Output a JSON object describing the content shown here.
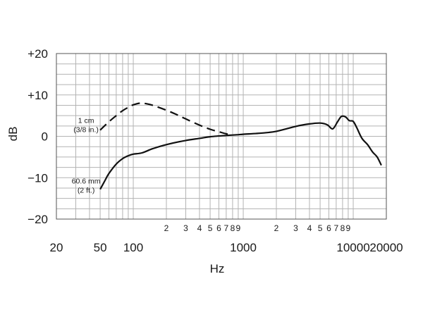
{
  "chart_data": {
    "type": "line",
    "xlabel": "Hz",
    "ylabel": "dB",
    "x_scale": "log",
    "xlim": [
      20,
      20000
    ],
    "ylim": [
      -20,
      20
    ],
    "grid": true,
    "y_ticks": [
      "+20",
      "+10",
      "0",
      "−10",
      "−20"
    ],
    "y_tick_values": [
      20,
      10,
      0,
      -10,
      -20
    ],
    "x_major_ticks": [
      "20",
      "50",
      "100",
      "1000",
      "10000",
      "20000"
    ],
    "x_major_tick_values": [
      20,
      50,
      100,
      1000,
      10000,
      20000
    ],
    "x_minor_ticks": [
      {
        "label": "2",
        "value": 200
      },
      {
        "label": "3",
        "value": 300
      },
      {
        "label": "4",
        "value": 400
      },
      {
        "label": "5",
        "value": 500
      },
      {
        "label": "6",
        "value": 600
      },
      {
        "label": "7",
        "value": 700
      },
      {
        "label": "8",
        "value": 800
      },
      {
        "label": "9",
        "value": 900
      },
      {
        "label": "2",
        "value": 2000
      },
      {
        "label": "3",
        "value": 3000
      },
      {
        "label": "4",
        "value": 4000
      },
      {
        "label": "5",
        "value": 5000
      },
      {
        "label": "6",
        "value": 6000
      },
      {
        "label": "7",
        "value": 7000
      },
      {
        "label": "8",
        "value": 8000
      },
      {
        "label": "9",
        "value": 9000
      }
    ],
    "series": [
      {
        "name": "1 cm (3/8 in.)",
        "name_line1": "1 cm",
        "name_line2": "(3/8 in.)",
        "style": "dashed",
        "color": "#111111",
        "x": [
          50,
          60,
          70,
          80,
          90,
          100,
          115,
          130,
          150,
          200,
          250,
          300,
          400,
          500,
          600,
          700,
          800
        ],
        "y": [
          1.5,
          3.5,
          5.0,
          6.2,
          7.0,
          7.6,
          8.0,
          7.9,
          7.5,
          6.3,
          5.2,
          4.2,
          2.7,
          1.7,
          1.1,
          0.6,
          0.3
        ]
      },
      {
        "name": "60.6 mm (2 ft.)",
        "name_line1": "60.6 mm",
        "name_line2": "(2 ft.)",
        "style": "solid",
        "color": "#111111",
        "x": [
          50,
          55,
          60,
          70,
          80,
          90,
          100,
          120,
          150,
          200,
          300,
          400,
          500,
          700,
          900,
          1000,
          1500,
          2000,
          3000,
          4000,
          5000,
          5800,
          6500,
          7200,
          7800,
          8500,
          9200,
          10000,
          10800,
          12000,
          13500,
          15000,
          16500,
          18000
        ],
        "y": [
          -12.8,
          -10.8,
          -9.0,
          -6.7,
          -5.4,
          -4.7,
          -4.3,
          -4.0,
          -3.0,
          -2.0,
          -1.0,
          -0.5,
          -0.1,
          0.2,
          0.4,
          0.5,
          0.8,
          1.2,
          2.4,
          3.0,
          3.2,
          2.8,
          1.8,
          3.5,
          4.8,
          4.7,
          3.8,
          3.6,
          2.0,
          -0.5,
          -2.0,
          -3.8,
          -5.0,
          -7.0
        ]
      }
    ]
  }
}
